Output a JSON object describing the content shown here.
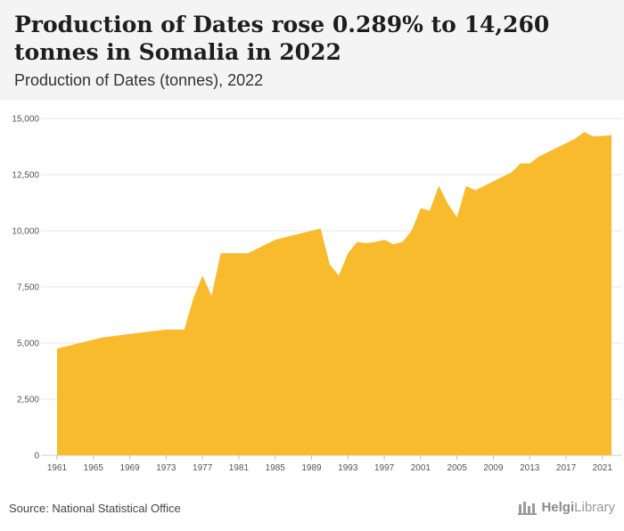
{
  "header": {
    "title": "Production of Dates rose 0.289% to 14,260 tonnes in Somalia in 2022",
    "subtitle": "Production of Dates (tonnes), 2022"
  },
  "footer": {
    "source": "Source: National Statistical Office",
    "brand_part1": "Helgi",
    "brand_part2": "Library"
  },
  "colors": {
    "area_fill": "#f8bb2d",
    "grid": "#e4e4e4",
    "header_bg": "#f4f4f4"
  },
  "icons": [
    "helgi-library-logo-icon"
  ],
  "chart_data": {
    "type": "area",
    "x": [
      1961,
      1962,
      1963,
      1964,
      1965,
      1966,
      1967,
      1968,
      1969,
      1970,
      1971,
      1972,
      1973,
      1974,
      1975,
      1976,
      1977,
      1978,
      1979,
      1980,
      1981,
      1982,
      1983,
      1984,
      1985,
      1986,
      1987,
      1988,
      1989,
      1990,
      1991,
      1992,
      1993,
      1994,
      1995,
      1996,
      1997,
      1998,
      1999,
      2000,
      2001,
      2002,
      2003,
      2004,
      2005,
      2006,
      2007,
      2008,
      2009,
      2010,
      2011,
      2012,
      2013,
      2014,
      2015,
      2016,
      2017,
      2018,
      2019,
      2020,
      2021,
      2022
    ],
    "series": [
      {
        "values": [
          4750,
          4850,
          4950,
          5050,
          5150,
          5250,
          5300,
          5350,
          5400,
          5450,
          5500,
          5550,
          5600,
          5600,
          5600,
          7000,
          8000,
          7100,
          9000,
          9000,
          9000,
          9000,
          9200,
          9400,
          9600,
          9700,
          9800,
          9900,
          10000,
          10100,
          8500,
          8000,
          9000,
          9500,
          9450,
          9500,
          9600,
          9400,
          9500,
          10000,
          11000,
          10900,
          12000,
          11200,
          10600,
          12000,
          11800,
          12000,
          12200,
          12400,
          12600,
          13000,
          13000,
          13300,
          13500,
          13700,
          13900,
          14100,
          14400,
          14200,
          14220,
          14260
        ]
      }
    ],
    "x_tick_labels": [
      "1961",
      "1965",
      "1969",
      "1973",
      "1977",
      "1981",
      "1985",
      "1989",
      "1993",
      "1997",
      "2001",
      "2005",
      "2009",
      "2013",
      "2017",
      "2021"
    ],
    "y_tick_labels": [
      "0",
      "2,500",
      "5,000",
      "7,500",
      "10,000",
      "12,500",
      "15,000"
    ],
    "y_ticks": [
      0,
      2500,
      5000,
      7500,
      10000,
      12500,
      15000
    ],
    "ylim": [
      0,
      15000
    ],
    "xlim": [
      1961,
      2022
    ],
    "grid": true,
    "legend": "none"
  }
}
